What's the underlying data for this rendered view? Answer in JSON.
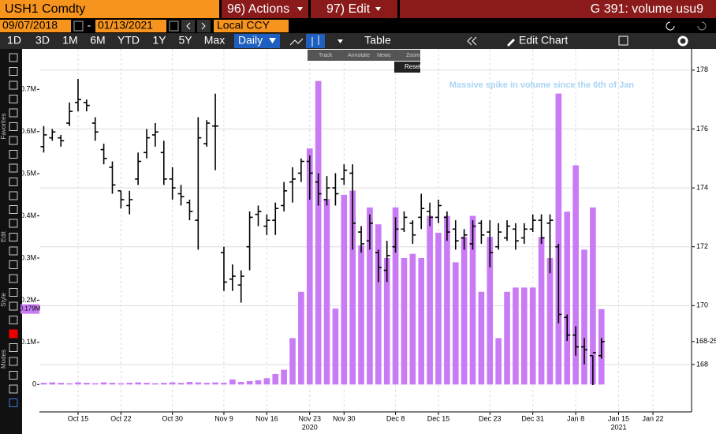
{
  "header": {
    "ticker": "USH1 Comdty",
    "actions": "96) Actions",
    "edit": "97) Edit",
    "function": "G 391: volume usu9"
  },
  "range": {
    "start": "09/07/2018",
    "separator": "-",
    "end": "01/13/2021",
    "currency": "Local CCY"
  },
  "toolbar": {
    "periods": [
      "1D",
      "3D",
      "1M",
      "6M",
      "YTD",
      "1Y",
      "5Y",
      "Max"
    ],
    "frequency": "Daily",
    "table": "Table",
    "edit_chart": "Edit Chart"
  },
  "side_labels": [
    "Favorites",
    "Edit",
    "Style",
    "Modes"
  ],
  "chart_tools": [
    "Track",
    "Annotate",
    "News",
    "Zoom"
  ],
  "reset": "Reset",
  "chart_data": {
    "type": "combo",
    "annotation": "Massive spike in volume since the 6th of Jan",
    "categories": [
      null,
      null,
      null,
      null,
      "Oct 15",
      null,
      null,
      null,
      null,
      "Oct 22",
      null,
      null,
      null,
      null,
      null,
      "Oct 30",
      null,
      null,
      null,
      null,
      null,
      "Nov 9",
      null,
      null,
      null,
      null,
      "Nov 16",
      null,
      null,
      null,
      null,
      "Nov 23",
      null,
      null,
      null,
      "Nov 30",
      null,
      null,
      null,
      null,
      null,
      "Dec 8",
      null,
      null,
      null,
      null,
      "Dec 15",
      null,
      null,
      null,
      null,
      null,
      "Dec 23",
      null,
      null,
      null,
      null,
      "Dec 31",
      null,
      null,
      null,
      null,
      "Jan 8",
      null,
      null,
      null,
      null,
      "Jan 15",
      null,
      null,
      null,
      "Jan 22",
      null,
      null,
      null,
      null
    ],
    "years": [
      {
        "index": 31,
        "label": "2020"
      },
      {
        "index": 67,
        "label": "2021"
      }
    ],
    "ylim": [
      -65000,
      796000
    ],
    "yticks": [
      0,
      {
        "value": 100000,
        "label": "0.1M"
      },
      {
        "value": 200000,
        "label": "0.2M"
      },
      {
        "value": 300000,
        "label": "0.3M"
      },
      {
        "value": 400000,
        "label": "0.4M"
      },
      {
        "value": 500000,
        "label": "0.5M"
      },
      {
        "value": 600000,
        "label": "0.6M"
      },
      {
        "value": 700000,
        "label": "0.7M"
      }
    ],
    "y2lim": [
      166.39,
      178.72
    ],
    "y2ticks": [
      168,
      170,
      172,
      174,
      176,
      178
    ],
    "grid": true,
    "last_volume": {
      "value": 179000,
      "label": "0.179M"
    },
    "last_price": {
      "value": 168.78,
      "label": "168-25"
    },
    "series": [
      {
        "type": "bar",
        "color": "#c97bf5",
        "values": [
          4000,
          5000,
          4000,
          3000,
          5000,
          4000,
          3000,
          5000,
          4000,
          3000,
          4000,
          5000,
          4000,
          3000,
          4000,
          5000,
          4000,
          6000,
          5000,
          4000,
          5000,
          4000,
          12000,
          6000,
          8000,
          10000,
          15000,
          25000,
          35000,
          110000,
          220000,
          560000,
          720000,
          440000,
          180000,
          450000,
          460000,
          330000,
          420000,
          380000,
          300000,
          420000,
          300000,
          310000,
          300000,
          400000,
          360000,
          400000,
          290000,
          350000,
          400000,
          220000,
          350000,
          110000,
          220000,
          230000,
          230000,
          230000,
          350000,
          300000,
          690000,
          410000,
          520000,
          320000,
          420000,
          179000,
          null,
          null,
          null,
          null,
          null,
          null,
          null,
          null,
          null,
          null
        ]
      },
      {
        "type": "ohlc",
        "axis": "y2",
        "color": "#000000",
        "open": [
          175.4,
          175.7,
          175.7,
          176.2,
          176.9,
          176.9,
          176.2,
          175.3,
          174.7,
          173.9,
          173.4,
          174.3,
          175.2,
          175.8,
          175.2,
          174.3,
          173.8,
          173.5,
          172.9,
          175.5,
          176.1,
          171.8,
          170.9,
          170.7,
          172.0,
          173.1,
          172.7,
          172.9,
          173.4,
          174.2,
          174.5,
          174.9,
          174.2,
          173.6,
          174.0,
          174.3,
          174.5,
          172.5,
          172.2,
          171.8,
          171.2,
          172.0,
          172.6,
          172.8,
          173.0,
          173.2,
          173.0,
          173.0,
          172.6,
          172.3,
          172.1,
          172.8,
          172.5,
          172.0,
          172.3,
          172.6,
          172.3,
          172.6,
          172.9,
          172.8,
          172.0,
          169.6,
          169.0,
          168.6,
          168.3,
          168.3,
          null,
          null,
          null,
          null,
          null,
          null,
          null,
          null,
          null,
          null
        ],
        "high": [
          176.1,
          176.0,
          175.8,
          176.9,
          177.7,
          177.0,
          176.4,
          175.5,
          174.9,
          173.9,
          173.9,
          175.2,
          176.0,
          176.2,
          175.6,
          174.7,
          174.1,
          173.6,
          176.4,
          176.3,
          177.2,
          172.0,
          171.4,
          171.2,
          173.2,
          173.4,
          173.1,
          173.5,
          174.2,
          174.7,
          175.0,
          175.1,
          174.5,
          174.4,
          174.5,
          174.8,
          174.8,
          172.7,
          173.1,
          171.9,
          172.2,
          173.0,
          173.2,
          172.9,
          173.8,
          173.5,
          173.6,
          173.2,
          172.9,
          172.6,
          172.9,
          172.9,
          172.9,
          172.8,
          172.9,
          172.8,
          172.8,
          173.1,
          173.1,
          173.1,
          172.1,
          169.7,
          169.3,
          168.9,
          168.3,
          168.9,
          null,
          null,
          null,
          null,
          null,
          null,
          null,
          null,
          null,
          null
        ],
        "low": [
          175.2,
          175.6,
          175.4,
          176.1,
          176.6,
          176.6,
          175.6,
          174.8,
          173.8,
          173.3,
          173.1,
          174.1,
          175.0,
          175.4,
          174.1,
          173.6,
          173.4,
          172.9,
          171.9,
          175.4,
          174.6,
          170.5,
          170.5,
          170.1,
          171.2,
          172.7,
          172.4,
          172.4,
          173.2,
          173.5,
          174.2,
          173.6,
          173.4,
          173.4,
          173.4,
          174.1,
          171.9,
          171.8,
          171.9,
          170.8,
          170.8,
          171.8,
          172.5,
          172.1,
          172.6,
          172.7,
          172.8,
          172.2,
          171.9,
          171.9,
          171.9,
          172.1,
          171.3,
          171.9,
          172.2,
          171.9,
          172.1,
          172.5,
          172.1,
          171.1,
          169.4,
          168.8,
          168.3,
          168.0,
          167.3,
          168.2,
          null,
          null,
          null,
          null,
          null,
          null,
          null,
          null,
          null,
          null
        ],
        "close": [
          175.8,
          175.9,
          175.6,
          176.6,
          177.0,
          176.8,
          175.9,
          175.0,
          174.1,
          173.6,
          173.6,
          174.9,
          175.7,
          175.9,
          174.3,
          174.0,
          173.7,
          173.2,
          175.7,
          176.2,
          176.1,
          170.8,
          171.0,
          171.0,
          173.0,
          173.2,
          172.9,
          173.3,
          173.9,
          174.3,
          174.9,
          174.5,
          173.8,
          174.0,
          173.8,
          174.6,
          172.8,
          172.1,
          172.8,
          171.3,
          171.7,
          172.6,
          173.0,
          172.4,
          173.3,
          173.0,
          173.4,
          172.5,
          172.2,
          172.4,
          172.7,
          172.4,
          171.8,
          172.5,
          172.7,
          172.2,
          172.6,
          172.9,
          172.3,
          172.9,
          169.7,
          169.0,
          168.6,
          168.5,
          168.4,
          168.78,
          null,
          null,
          null,
          null,
          null,
          null,
          null,
          null,
          null,
          null
        ]
      }
    ]
  }
}
